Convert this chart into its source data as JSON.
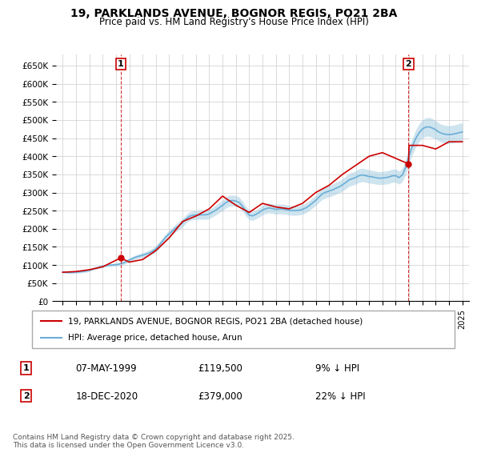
{
  "title_line1": "19, PARKLANDS AVENUE, BOGNOR REGIS, PO21 2BA",
  "title_line2": "Price paid vs. HM Land Registry's House Price Index (HPI)",
  "xlabel": "",
  "ylabel": "",
  "ylim": [
    0,
    680000
  ],
  "yticks": [
    0,
    50000,
    100000,
    150000,
    200000,
    250000,
    300000,
    350000,
    400000,
    450000,
    500000,
    550000,
    600000,
    650000
  ],
  "ytick_labels": [
    "£0",
    "£50K",
    "£100K",
    "£150K",
    "£200K",
    "£250K",
    "£300K",
    "£350K",
    "£400K",
    "£450K",
    "£500K",
    "£550K",
    "£600K",
    "£650K"
  ],
  "sale1_date": 1999.35,
  "sale1_price": 119500,
  "sale1_label": "1",
  "sale2_date": 2020.96,
  "sale2_price": 379000,
  "sale2_label": "2",
  "hpi_color": "#6baed6",
  "hpi_color_light": "#9ecae1",
  "price_color": "#cc0000",
  "grid_color": "#cccccc",
  "background_color": "#ffffff",
  "legend_line1": "19, PARKLANDS AVENUE, BOGNOR REGIS, PO21 2BA (detached house)",
  "legend_line2": "HPI: Average price, detached house, Arun",
  "table_row1": [
    "1",
    "07-MAY-1999",
    "£119,500",
    "9% ↓ HPI"
  ],
  "table_row2": [
    "2",
    "18-DEC-2020",
    "£379,000",
    "22% ↓ HPI"
  ],
  "footnote": "Contains HM Land Registry data © Crown copyright and database right 2025.\nThis data is licensed under the Open Government Licence v3.0.",
  "hpi_data": {
    "years": [
      1995.0,
      1995.25,
      1995.5,
      1995.75,
      1996.0,
      1996.25,
      1996.5,
      1996.75,
      1997.0,
      1997.25,
      1997.5,
      1997.75,
      1998.0,
      1998.25,
      1998.5,
      1998.75,
      1999.0,
      1999.25,
      1999.5,
      1999.75,
      2000.0,
      2000.25,
      2000.5,
      2000.75,
      2001.0,
      2001.25,
      2001.5,
      2001.75,
      2002.0,
      2002.25,
      2002.5,
      2002.75,
      2003.0,
      2003.25,
      2003.5,
      2003.75,
      2004.0,
      2004.25,
      2004.5,
      2004.75,
      2005.0,
      2005.25,
      2005.5,
      2005.75,
      2006.0,
      2006.25,
      2006.5,
      2006.75,
      2007.0,
      2007.25,
      2007.5,
      2007.75,
      2008.0,
      2008.25,
      2008.5,
      2008.75,
      2009.0,
      2009.25,
      2009.5,
      2009.75,
      2010.0,
      2010.25,
      2010.5,
      2010.75,
      2011.0,
      2011.25,
      2011.5,
      2011.75,
      2012.0,
      2012.25,
      2012.5,
      2012.75,
      2013.0,
      2013.25,
      2013.5,
      2013.75,
      2014.0,
      2014.25,
      2014.5,
      2014.75,
      2015.0,
      2015.25,
      2015.5,
      2015.75,
      2016.0,
      2016.25,
      2016.5,
      2016.75,
      2017.0,
      2017.25,
      2017.5,
      2017.75,
      2018.0,
      2018.25,
      2018.5,
      2018.75,
      2019.0,
      2019.25,
      2019.5,
      2019.75,
      2020.0,
      2020.25,
      2020.5,
      2020.75,
      2021.0,
      2021.25,
      2021.5,
      2021.75,
      2022.0,
      2022.25,
      2022.5,
      2022.75,
      2023.0,
      2023.25,
      2023.5,
      2023.75,
      2024.0,
      2024.25,
      2024.5,
      2024.75,
      2025.0
    ],
    "hpi_low": [
      78000,
      77000,
      76500,
      77000,
      77500,
      78000,
      79000,
      80000,
      82000,
      85000,
      88000,
      91000,
      93000,
      95000,
      96000,
      96500,
      97000,
      98000,
      100000,
      104000,
      108000,
      112000,
      116000,
      118000,
      120000,
      123000,
      126000,
      130000,
      136000,
      146000,
      157000,
      168000,
      176000,
      184000,
      192000,
      198000,
      205000,
      215000,
      222000,
      225000,
      226000,
      226000,
      226000,
      226000,
      228000,
      233000,
      238000,
      244000,
      250000,
      257000,
      262000,
      263000,
      262000,
      258000,
      248000,
      235000,
      225000,
      223000,
      227000,
      232000,
      238000,
      242000,
      244000,
      242000,
      240000,
      241000,
      241000,
      240000,
      238000,
      237000,
      237000,
      238000,
      240000,
      244000,
      250000,
      257000,
      264000,
      273000,
      281000,
      285000,
      288000,
      291000,
      295000,
      299000,
      304000,
      310000,
      317000,
      320000,
      323000,
      328000,
      330000,
      328000,
      326000,
      325000,
      323000,
      322000,
      322000,
      323000,
      325000,
      328000,
      328000,
      323000,
      330000,
      350000,
      380000,
      405000,
      425000,
      440000,
      450000,
      455000,
      455000,
      452000,
      448000,
      442000,
      438000,
      436000,
      435000,
      436000,
      438000,
      440000,
      442000
    ],
    "hpi_high": [
      83000,
      82000,
      82000,
      82000,
      83000,
      84000,
      85000,
      87000,
      89000,
      92000,
      95000,
      98000,
      100000,
      102000,
      103000,
      104000,
      105000,
      107000,
      110000,
      114000,
      119000,
      124000,
      128000,
      131000,
      134000,
      137000,
      141000,
      146000,
      153000,
      164000,
      175000,
      187000,
      196000,
      205000,
      213000,
      220000,
      228000,
      238000,
      246000,
      249000,
      250000,
      250000,
      251000,
      251000,
      254000,
      259000,
      265000,
      272000,
      279000,
      287000,
      292000,
      293000,
      291000,
      287000,
      276000,
      262000,
      250000,
      248000,
      252000,
      258000,
      265000,
      269000,
      271000,
      269000,
      267000,
      268000,
      268000,
      266000,
      264000,
      263000,
      263000,
      264000,
      267000,
      271000,
      277000,
      285000,
      293000,
      303000,
      312000,
      317000,
      320000,
      323000,
      328000,
      332000,
      338000,
      345000,
      353000,
      356000,
      360000,
      365000,
      367000,
      365000,
      362000,
      361000,
      359000,
      357000,
      358000,
      359000,
      361000,
      364000,
      365000,
      359000,
      367000,
      390000,
      423000,
      450000,
      473000,
      489000,
      500000,
      506000,
      507000,
      504000,
      498000,
      491000,
      487000,
      485000,
      484000,
      485000,
      487000,
      490000,
      492000
    ],
    "hpi_mid": [
      80500,
      79500,
      79250,
      79500,
      80250,
      81000,
      82000,
      83500,
      85500,
      88500,
      91500,
      94500,
      96500,
      98500,
      99500,
      100250,
      101000,
      102500,
      105000,
      109000,
      113500,
      118000,
      122000,
      124500,
      127000,
      130000,
      133500,
      138000,
      144500,
      155000,
      166000,
      177500,
      186000,
      194500,
      202500,
      209000,
      216500,
      226500,
      234000,
      237000,
      238000,
      238000,
      238500,
      238500,
      241000,
      246000,
      251500,
      258000,
      264500,
      272000,
      277000,
      278000,
      276500,
      272500,
      262000,
      248500,
      237500,
      235500,
      239500,
      245000,
      251500,
      255500,
      257500,
      255500,
      253500,
      254500,
      254500,
      253000,
      251000,
      250000,
      250000,
      251000,
      253500,
      257500,
      263500,
      271000,
      278500,
      288000,
      296500,
      301000,
      304000,
      307000,
      311500,
      315500,
      321000,
      327500,
      335000,
      338000,
      341500,
      346500,
      348500,
      346500,
      344000,
      343000,
      341000,
      339500,
      340000,
      341000,
      343000,
      346000,
      346500,
      341000,
      348500,
      370000,
      401500,
      427500,
      449000,
      464500,
      475000,
      480500,
      481000,
      478000,
      473000,
      466500,
      462500,
      460500,
      459500,
      460500,
      462500,
      465000,
      467000
    ]
  },
  "price_data": {
    "years": [
      1995.0,
      1996.0,
      1997.0,
      1998.0,
      1999.35,
      2000.0,
      2001.0,
      2002.0,
      2003.0,
      2004.0,
      2005.0,
      2006.0,
      2007.0,
      2008.0,
      2009.0,
      2010.0,
      2011.0,
      2012.0,
      2013.0,
      2014.0,
      2015.0,
      2016.0,
      2017.0,
      2018.0,
      2019.0,
      2020.96,
      2021.0,
      2022.0,
      2023.0,
      2024.0,
      2025.0
    ],
    "values": [
      80000,
      82000,
      87000,
      95000,
      119500,
      108000,
      115000,
      140000,
      175000,
      220000,
      235000,
      255000,
      290000,
      265000,
      245000,
      270000,
      260000,
      255000,
      270000,
      300000,
      320000,
      350000,
      375000,
      400000,
      410000,
      379000,
      430000,
      430000,
      420000,
      440000,
      440000
    ]
  }
}
